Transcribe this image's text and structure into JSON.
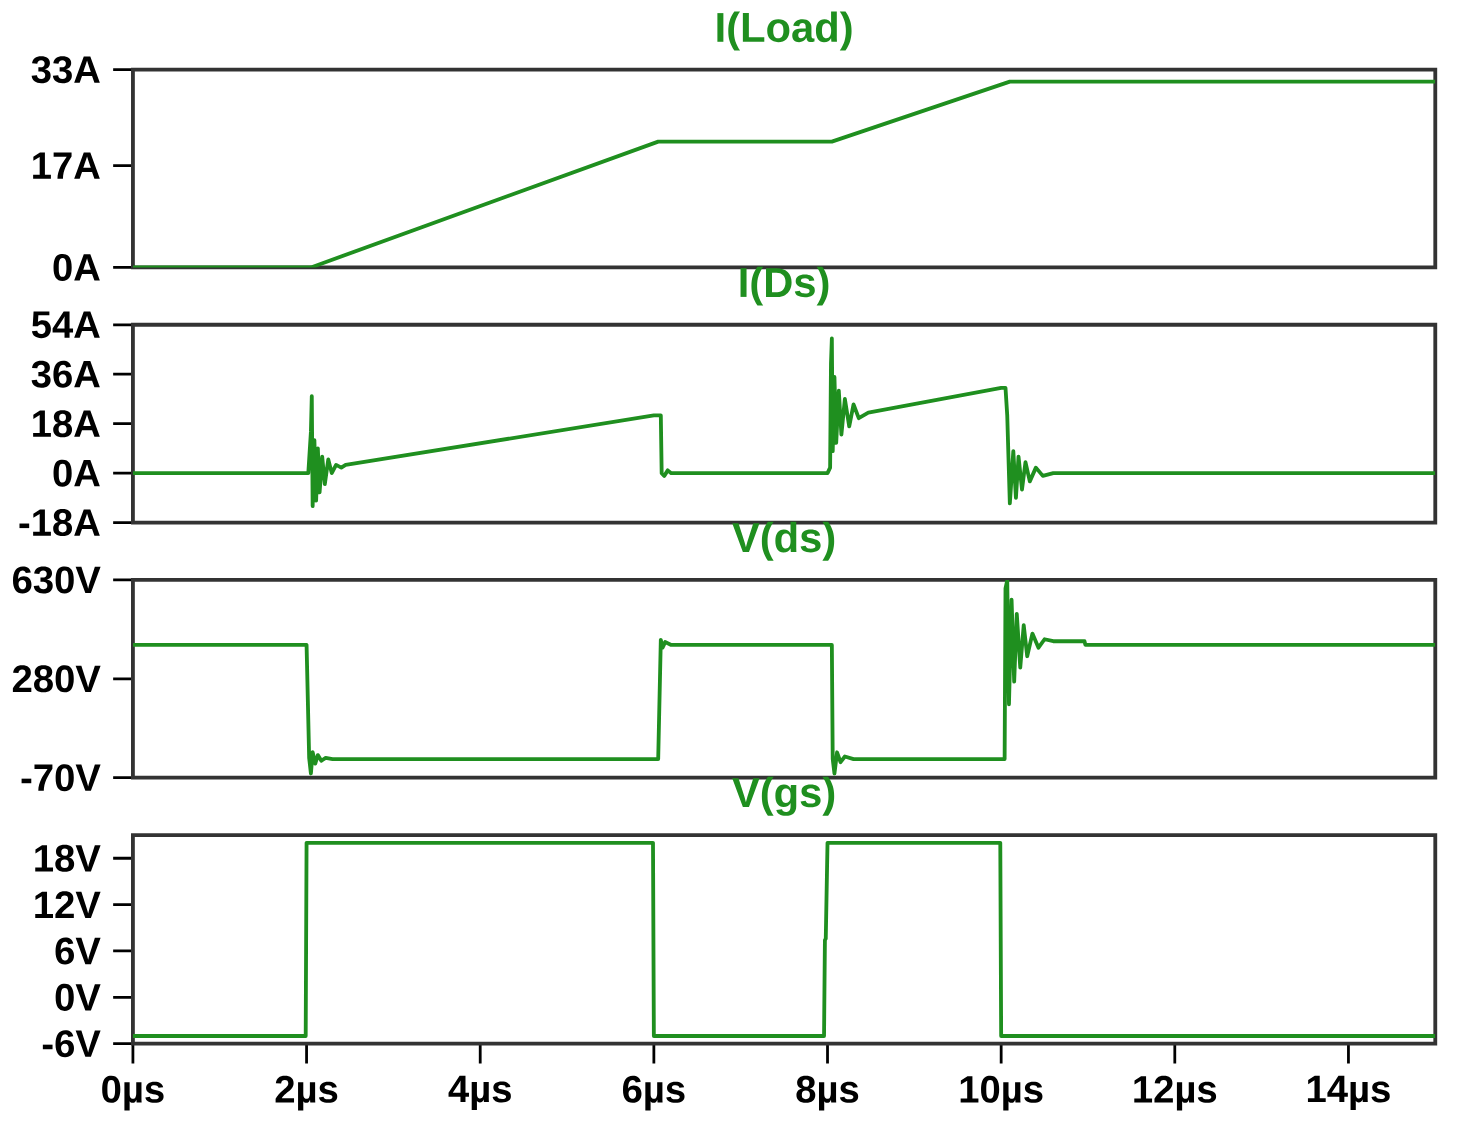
{
  "chart_data": [
    {
      "type": "line",
      "title": "I(Load)",
      "xlim": [
        0,
        15
      ],
      "ylim": [
        0,
        33
      ],
      "tick_labels": "y",
      "yticks": [
        {
          "value": 0,
          "label": "0A"
        },
        {
          "value": 17,
          "label": "17A"
        },
        {
          "value": 33,
          "label": "33A"
        }
      ],
      "series": [
        {
          "color": "#1f8f1f",
          "x": [
            0,
            2.05,
            6.05,
            8.05,
            10.1,
            15
          ],
          "values": [
            0,
            0,
            21,
            21,
            31,
            31
          ]
        }
      ]
    },
    {
      "type": "line",
      "title": "I(Ds)",
      "xlim": [
        0,
        15
      ],
      "ylim": [
        -18,
        54
      ],
      "tick_labels": "y",
      "yticks": [
        {
          "value": -18,
          "label": "-18A"
        },
        {
          "value": 0,
          "label": "0A"
        },
        {
          "value": 18,
          "label": "18A"
        },
        {
          "value": 36,
          "label": "36A"
        },
        {
          "value": 54,
          "label": "54A"
        }
      ],
      "series": [
        {
          "color": "#1f8f1f",
          "x": [
            0,
            2.02,
            2.05,
            2.06,
            2.07,
            2.09,
            2.11,
            2.13,
            2.15,
            2.18,
            2.21,
            2.25,
            2.29,
            2.34,
            2.4,
            2.45,
            6.0,
            6.08,
            6.09,
            6.12,
            6.16,
            6.2,
            8.0,
            8.03,
            8.04,
            8.05,
            8.06,
            8.08,
            8.1,
            8.13,
            8.16,
            8.2,
            8.25,
            8.3,
            8.36,
            8.47,
            10.0,
            10.05,
            10.07,
            10.1,
            10.14,
            10.17,
            10.2,
            10.24,
            10.28,
            10.33,
            10.4,
            10.48,
            10.6,
            15
          ],
          "values": [
            0,
            0,
            15,
            28,
            -12,
            12,
            -10,
            9,
            -7,
            6,
            -4,
            5,
            0,
            3,
            2,
            3,
            21,
            21,
            0,
            -1,
            1,
            0,
            0,
            2,
            40,
            49,
            8,
            35,
            11,
            30,
            14,
            27,
            17,
            25,
            20,
            22,
            31,
            31,
            21,
            -11,
            8,
            -9,
            6,
            -6,
            4,
            -3,
            2,
            -1,
            0,
            0
          ]
        }
      ]
    },
    {
      "type": "line",
      "title": "V(ds)",
      "xlim": [
        0,
        15
      ],
      "ylim": [
        -70,
        630
      ],
      "tick_labels": "y",
      "yticks": [
        {
          "value": -70,
          "label": "-70V"
        },
        {
          "value": 280,
          "label": "280V"
        },
        {
          "value": 630,
          "label": "630V"
        }
      ],
      "series": [
        {
          "color": "#1f8f1f",
          "x": [
            0,
            2.0,
            2.03,
            2.05,
            2.07,
            2.1,
            2.13,
            2.17,
            2.22,
            2.3,
            6.05,
            6.08,
            6.1,
            6.13,
            6.2,
            6.48,
            8.05,
            8.06,
            8.08,
            8.11,
            8.15,
            8.2,
            8.3,
            10.04,
            10.05,
            10.07,
            10.09,
            10.12,
            10.15,
            10.18,
            10.22,
            10.26,
            10.3,
            10.36,
            10.43,
            10.5,
            10.6,
            10.96,
            10.97,
            15
          ],
          "values": [
            400,
            400,
            0,
            -55,
            20,
            -20,
            10,
            -10,
            0,
            -4,
            -4,
            418,
            390,
            410,
            400,
            400,
            400,
            -4,
            -55,
            20,
            -15,
            5,
            -4,
            -4,
            600,
            628,
            190,
            560,
            270,
            510,
            320,
            470,
            360,
            440,
            390,
            420,
            413,
            413,
            400,
            400
          ]
        }
      ]
    },
    {
      "type": "line",
      "title": "V(gs)",
      "xlim": [
        0,
        15
      ],
      "ylim": [
        -6,
        21
      ],
      "yticks": [
        {
          "value": -6,
          "label": "-6V"
        },
        {
          "value": 0,
          "label": "0V"
        },
        {
          "value": 6,
          "label": "6V"
        },
        {
          "value": 12,
          "label": "12V"
        },
        {
          "value": 18,
          "label": "18V"
        }
      ],
      "xticks": [
        {
          "value": 0,
          "label": "0µs"
        },
        {
          "value": 2,
          "label": "2µs"
        },
        {
          "value": 4,
          "label": "4µs"
        },
        {
          "value": 6,
          "label": "6µs"
        },
        {
          "value": 8,
          "label": "8µs"
        },
        {
          "value": 10,
          "label": "10µs"
        },
        {
          "value": 12,
          "label": "12µs"
        },
        {
          "value": 14,
          "label": "14µs"
        }
      ],
      "series": [
        {
          "color": "#1f8f1f",
          "x": [
            0,
            1.99,
            2.0,
            5.99,
            6.0,
            7.96,
            7.97,
            7.98,
            8.0,
            9.99,
            10.0,
            15
          ],
          "values": [
            -5,
            -5,
            20,
            20,
            -5,
            -5,
            7.4,
            7.6,
            20,
            20,
            -5,
            -5
          ]
        }
      ]
    }
  ]
}
